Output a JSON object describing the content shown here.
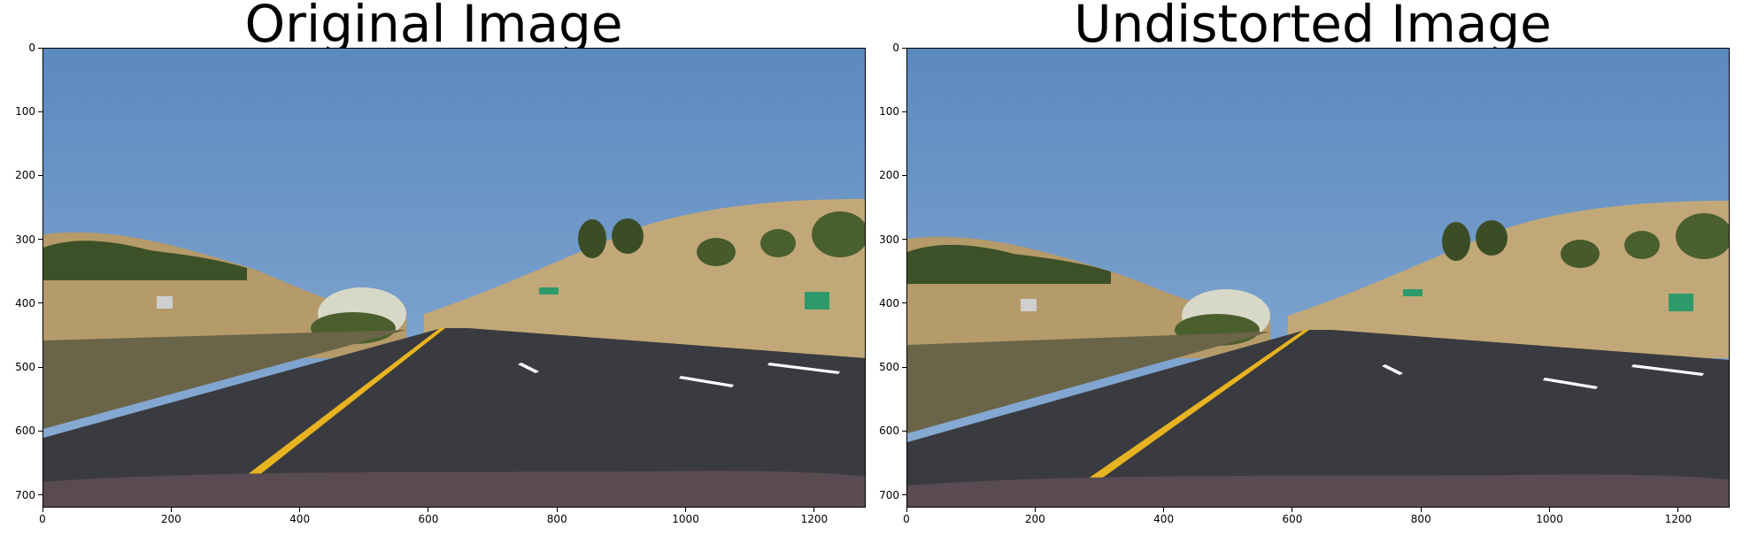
{
  "panels": [
    {
      "title": "Original Image"
    },
    {
      "title": "Undistorted Image"
    }
  ],
  "axis": {
    "x_ticks": [
      "0",
      "200",
      "400",
      "600",
      "800",
      "1000",
      "1200"
    ],
    "x_values": [
      0,
      200,
      400,
      600,
      800,
      1000,
      1200
    ],
    "y_ticks": [
      "0",
      "100",
      "200",
      "300",
      "400",
      "500",
      "600",
      "700"
    ],
    "y_values": [
      0,
      100,
      200,
      300,
      400,
      500,
      600,
      700
    ],
    "xlim": [
      0,
      1280
    ],
    "ylim": [
      720,
      0
    ]
  },
  "colors": {
    "sky_top": "#5b89bf",
    "sky_bottom": "#8fb0d6",
    "hill": "#c2a878",
    "trees": "#3d5128",
    "road": "#3a3b40",
    "lane_yellow": "#e8b320",
    "lane_white": "#ffffff",
    "hood": "#5a4b52"
  }
}
